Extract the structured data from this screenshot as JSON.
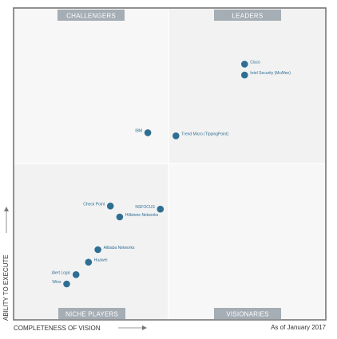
{
  "chart_data": {
    "type": "scatter",
    "quadrants": {
      "top_left": "CHALLENGERS",
      "top_right": "LEADERS",
      "bottom_left": "NICHE PLAYERS",
      "bottom_right": "VISIONARIES"
    },
    "xlabel": "COMPLETENESS OF VISION",
    "ylabel": "ABILITY TO EXECUTE",
    "note": "As of January 2017",
    "xlim": [
      0,
      100
    ],
    "ylim": [
      0,
      100
    ],
    "colors": {
      "point": "#2f6e93",
      "quadrant_label_bg": "#a5adb5",
      "frame": "#777777"
    },
    "points": [
      {
        "name": "Cisco",
        "x": 74.0,
        "y": 82.0
      },
      {
        "name": "Intel Security (McAfee)",
        "x": 74.0,
        "y": 78.5
      },
      {
        "name": "IBM",
        "x": 43.0,
        "y": 60.0
      },
      {
        "name": "Trend Micro (TippingPoint)",
        "x": 52.0,
        "y": 59.0
      },
      {
        "name": "Check Point",
        "x": 31.0,
        "y": 36.5
      },
      {
        "name": "NSFOCUS",
        "x": 47.0,
        "y": 35.5
      },
      {
        "name": "Hillstone Networks",
        "x": 34.0,
        "y": 33.0
      },
      {
        "name": "Alibaba Networks",
        "x": 27.0,
        "y": 22.5
      },
      {
        "name": "Huawei",
        "x": 24.0,
        "y": 18.5
      },
      {
        "name": "Alert Logic",
        "x": 20.0,
        "y": 14.5
      },
      {
        "name": "Wins",
        "x": 17.0,
        "y": 11.5
      }
    ]
  }
}
